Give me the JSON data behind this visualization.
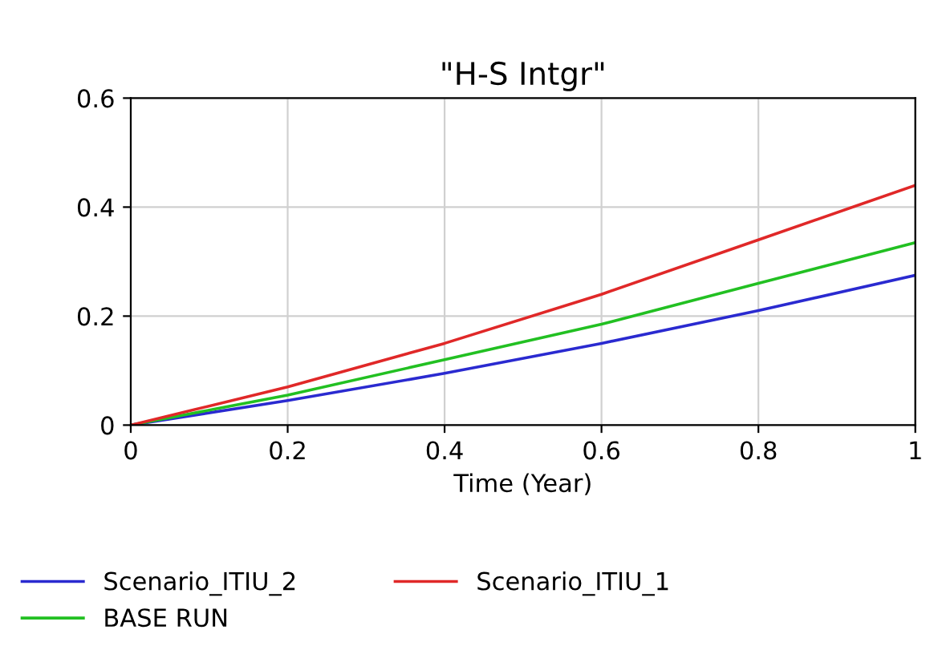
{
  "chart_data": {
    "type": "line",
    "title": "\"H-S Intgr\"",
    "xlabel": "Time (Year)",
    "x": [
      0,
      0.2,
      0.4,
      0.6,
      0.8,
      1
    ],
    "series": [
      {
        "name": "Scenario_ITIU_2",
        "color": "#2a2ad0",
        "values": [
          0,
          0.045,
          0.095,
          0.15,
          0.21,
          0.275
        ]
      },
      {
        "name": "BASE RUN",
        "color": "#22c022",
        "values": [
          0,
          0.055,
          0.12,
          0.185,
          0.26,
          0.335
        ]
      },
      {
        "name": "Scenario_ITIU_1",
        "color": "#e02828",
        "values": [
          0,
          0.07,
          0.15,
          0.24,
          0.34,
          0.44
        ]
      }
    ],
    "xlim": [
      0,
      1
    ],
    "ylim": [
      0,
      0.6
    ],
    "xticks": [
      0,
      0.2,
      0.4,
      0.6,
      0.8,
      1
    ],
    "yticks": [
      0,
      0.2,
      0.4,
      0.6
    ],
    "grid": true,
    "legend": "bottom"
  }
}
